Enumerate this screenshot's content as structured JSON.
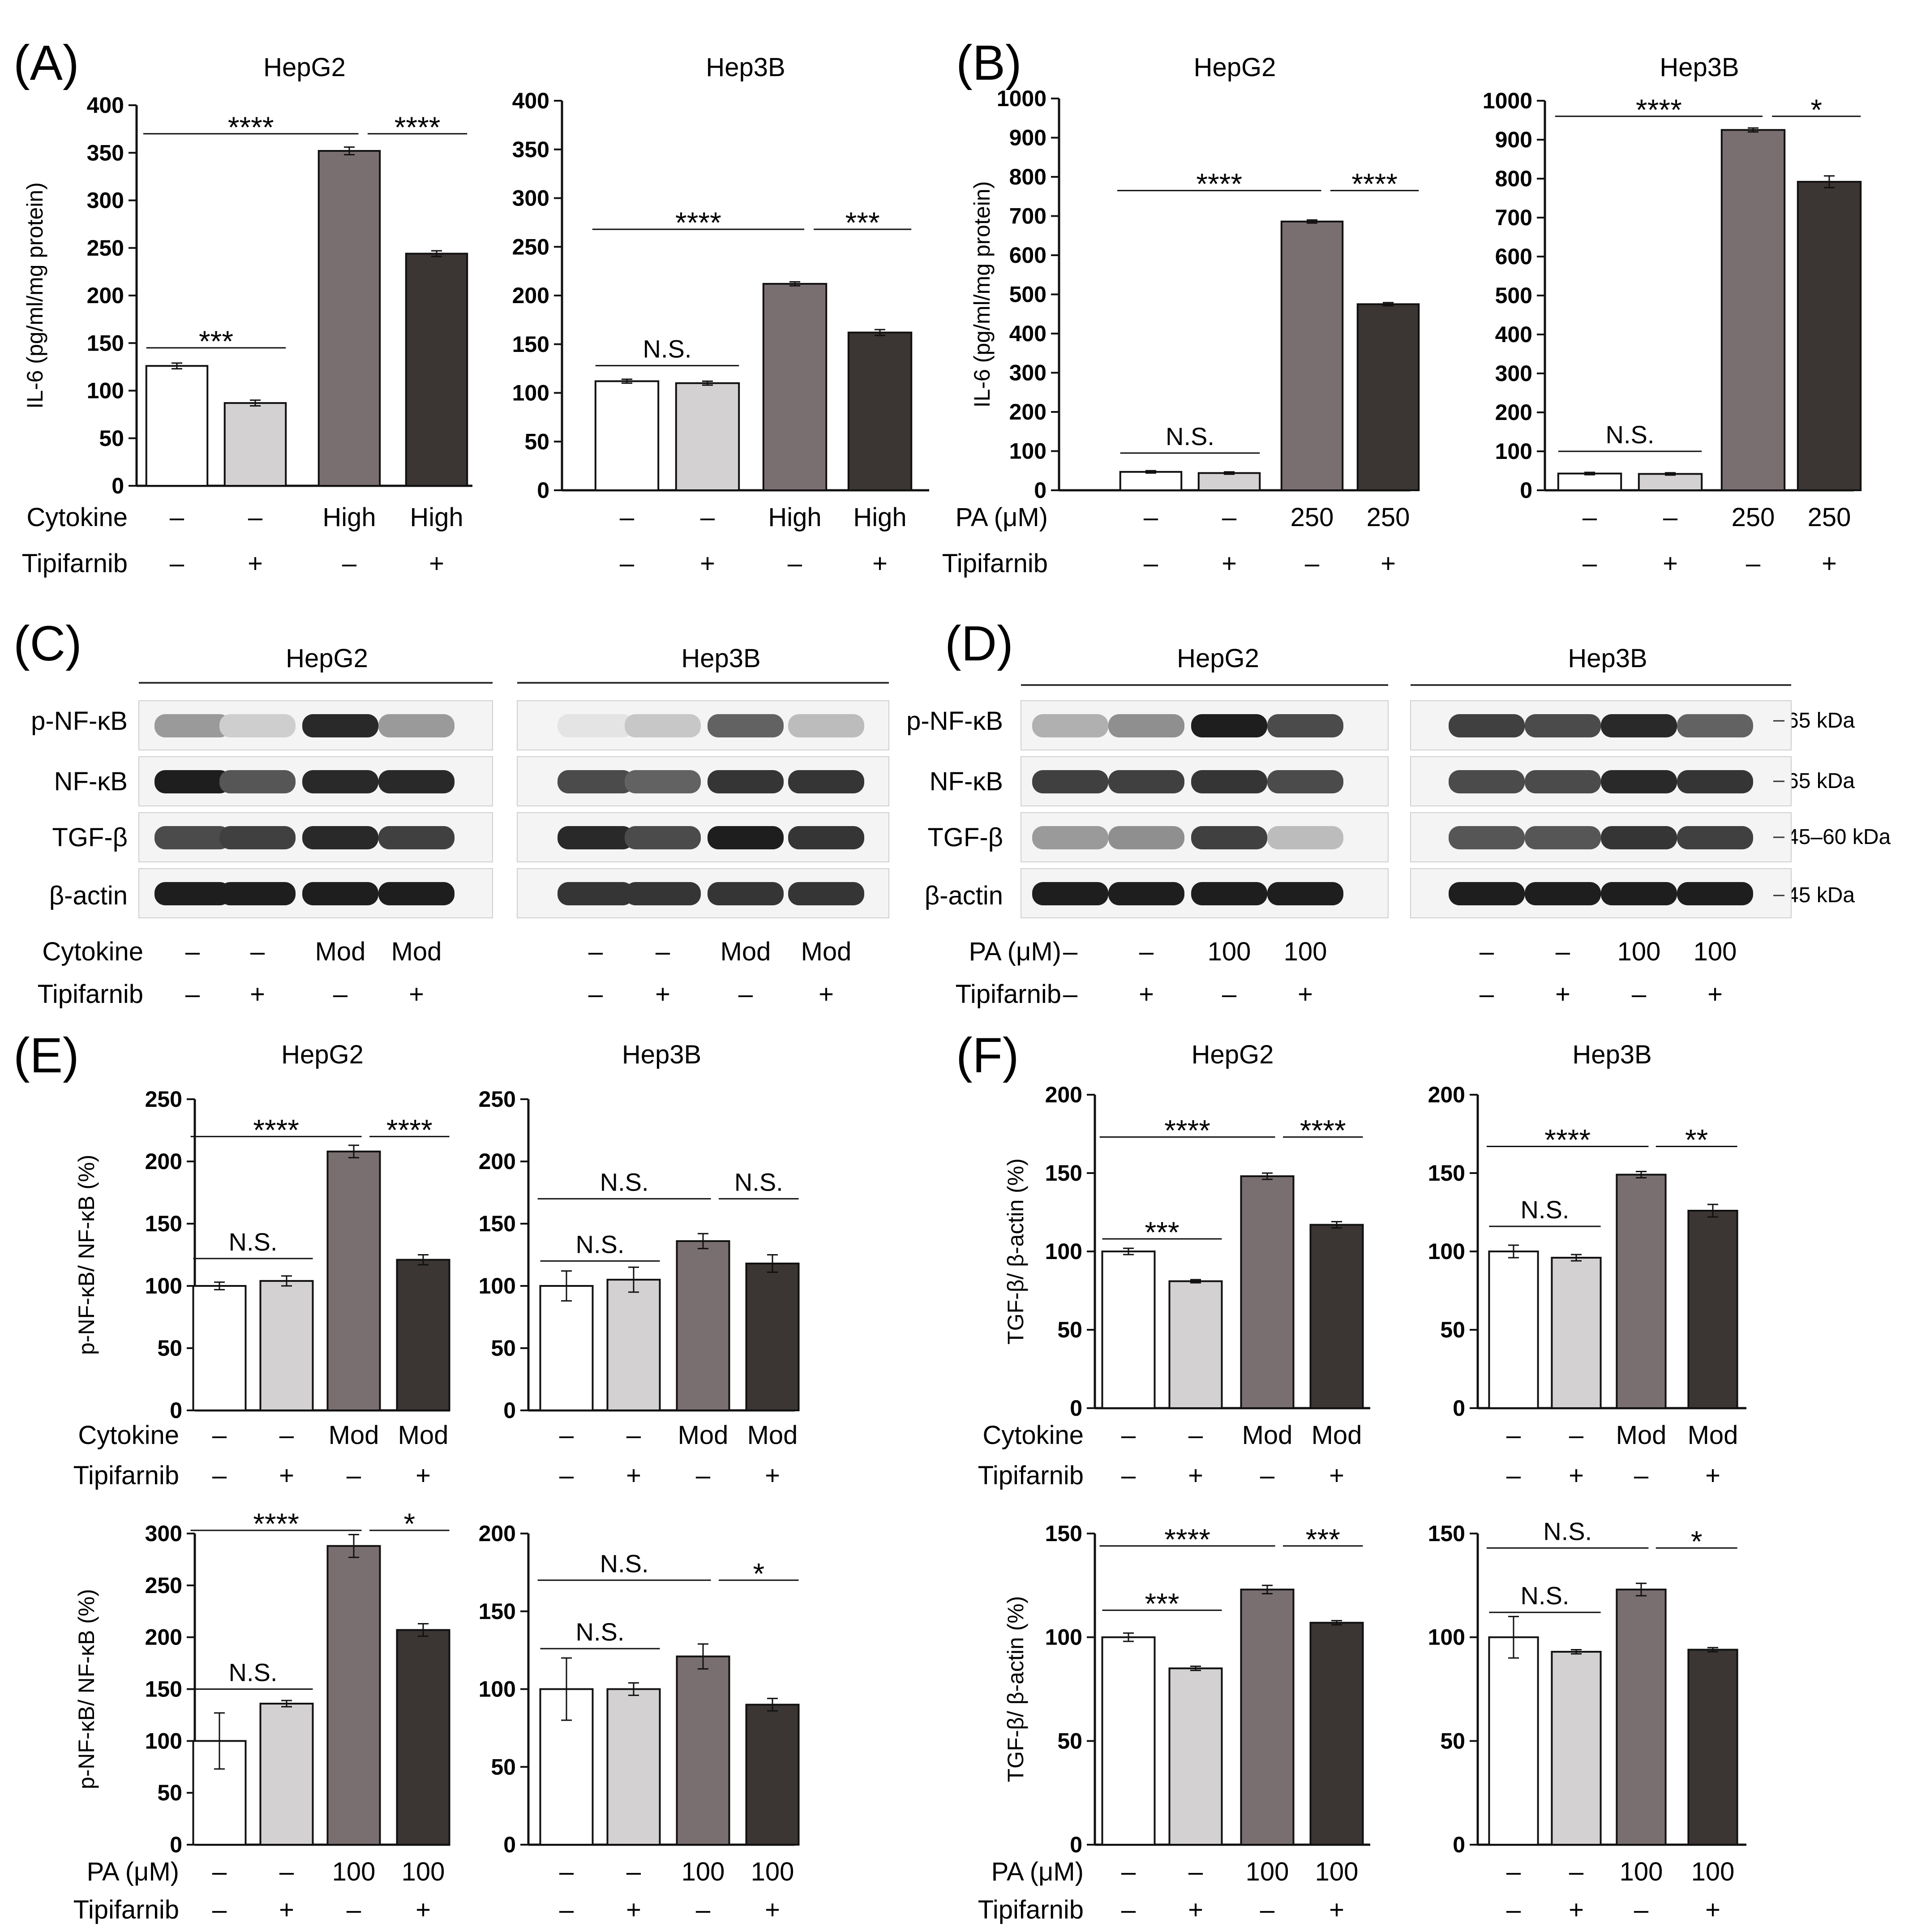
{
  "colors": {
    "white": "#ffffff",
    "light": "#d3d1d2",
    "medium": "#7a6f70",
    "dark": "#3b3533",
    "axis": "#111111"
  },
  "labels": {
    "cytokine": "Cytokine",
    "tipifarnib": "Tipifarnib",
    "pa": "PA (μM)",
    "dash": "–",
    "plus": "+",
    "high": "High",
    "mod": "Mod",
    "pa250": "250",
    "pa100": "100"
  },
  "panels": {
    "A": "(A)",
    "B": "(B)",
    "C": "(C)",
    "D": "(D)",
    "E": "(E)",
    "F": "(F)"
  },
  "blots": {
    "C": {
      "hepg2": "HepG2",
      "hep3b": "Hep3B",
      "rows": [
        "p-NF-κB",
        "NF-κB",
        "TGF-β",
        "β-actin"
      ]
    },
    "D": {
      "hepg2": "HepG2",
      "hep3b": "Hep3B",
      "rows": [
        "p-NF-κB",
        "NF-κB",
        "TGF-β",
        "β-actin"
      ]
    },
    "kda": [
      "65 kDa",
      "65 kDa",
      "45–60 kDa",
      "45 kDa"
    ]
  },
  "chart_data": [
    {
      "id": "A_hepg2",
      "type": "bar",
      "title": "HepG2",
      "ylabel": "IL-6 (pg/ml/mg protein)",
      "ylim": [
        0,
        400
      ],
      "yticks": [
        0,
        50,
        100,
        150,
        200,
        250,
        300,
        350,
        400
      ],
      "categories": [
        "–/–",
        "–/+",
        "High/–",
        "High/+"
      ],
      "values": [
        126,
        87,
        352,
        244
      ],
      "errors": [
        3,
        3,
        4,
        3
      ],
      "row1_label": "Cytokine",
      "row1": [
        "–",
        "–",
        "High",
        "High"
      ],
      "row2_label": "Tipifarnib",
      "row2": [
        "–",
        "+",
        "–",
        "+"
      ],
      "annotations": [
        {
          "from": 0,
          "to": 1,
          "text": "***",
          "y": 145
        },
        {
          "from": 0,
          "to": 2,
          "text": "****",
          "y": 370
        },
        {
          "from": 2,
          "to": 3,
          "text": "****",
          "y": 370
        }
      ]
    },
    {
      "id": "A_hep3b",
      "type": "bar",
      "title": "Hep3B",
      "ylabel": "",
      "ylim": [
        0,
        400
      ],
      "yticks": [
        0,
        50,
        100,
        150,
        200,
        250,
        300,
        350,
        400
      ],
      "categories": [
        "–/–",
        "–/+",
        "High/–",
        "High/+"
      ],
      "values": [
        112,
        110,
        212,
        162
      ],
      "errors": [
        2,
        2,
        2,
        3
      ],
      "row1_label": "",
      "row1": [
        "–",
        "–",
        "High",
        "High"
      ],
      "row2_label": "",
      "row2": [
        "–",
        "+",
        "–",
        "+"
      ],
      "annotations": [
        {
          "from": 0,
          "to": 1,
          "text": "N.S.",
          "y": 128
        },
        {
          "from": 0,
          "to": 2,
          "text": "****",
          "y": 268
        },
        {
          "from": 2,
          "to": 3,
          "text": "***",
          "y": 268
        }
      ]
    },
    {
      "id": "B_hepg2",
      "type": "bar",
      "title": "HepG2",
      "ylabel": "IL-6 (pg/ml/mg protein)",
      "ylim": [
        0,
        1000
      ],
      "yticks": [
        0,
        100,
        200,
        300,
        400,
        500,
        600,
        700,
        800,
        900,
        1000
      ],
      "categories": [
        "–/–",
        "–/+",
        "250/–",
        "250/+"
      ],
      "values": [
        47,
        44,
        686,
        475
      ],
      "errors": [
        3,
        3,
        4,
        4
      ],
      "row1_label": "PA (μM)",
      "row1": [
        "–",
        "–",
        "250",
        "250"
      ],
      "row2_label": "Tipifarnib",
      "row2": [
        "–",
        "+",
        "–",
        "+"
      ],
      "annotations": [
        {
          "from": 0,
          "to": 1,
          "text": "N.S.",
          "y": 95
        },
        {
          "from": 0,
          "to": 2,
          "text": "****",
          "y": 765
        },
        {
          "from": 2,
          "to": 3,
          "text": "****",
          "y": 765
        }
      ]
    },
    {
      "id": "B_hep3b",
      "type": "bar",
      "title": "Hep3B",
      "ylabel": "",
      "ylim": [
        0,
        1000
      ],
      "yticks": [
        0,
        100,
        200,
        300,
        400,
        500,
        600,
        700,
        800,
        900,
        1000
      ],
      "categories": [
        "–/–",
        "–/+",
        "250/–",
        "250/+"
      ],
      "values": [
        43,
        42,
        925,
        792
      ],
      "errors": [
        3,
        3,
        5,
        15
      ],
      "row1_label": "",
      "row1": [
        "–",
        "–",
        "250",
        "250"
      ],
      "row2_label": "",
      "row2": [
        "–",
        "+",
        "–",
        "+"
      ],
      "annotations": [
        {
          "from": 0,
          "to": 1,
          "text": "N.S.",
          "y": 100
        },
        {
          "from": 0,
          "to": 2,
          "text": "****",
          "y": 960
        },
        {
          "from": 2,
          "to": 3,
          "text": "*",
          "y": 960
        }
      ]
    },
    {
      "id": "E_hepg2_top",
      "type": "bar",
      "title": "HepG2",
      "ylabel": "p-NF-κB/ NF-κB (%)",
      "ylim": [
        0,
        250
      ],
      "yticks": [
        0,
        50,
        100,
        150,
        200,
        250
      ],
      "categories": [
        "–/–",
        "–/+",
        "Mod/–",
        "Mod/+"
      ],
      "values": [
        100,
        104,
        208,
        121
      ],
      "errors": [
        3,
        4,
        5,
        4
      ],
      "row1_label": "Cytokine",
      "row1": [
        "–",
        "–",
        "Mod",
        "Mod"
      ],
      "row2_label": "Tipifarnib",
      "row2": [
        "–",
        "+",
        "–",
        "+"
      ],
      "annotations": [
        {
          "from": 0,
          "to": 1,
          "text": "N.S.",
          "y": 122
        },
        {
          "from": 0,
          "to": 2,
          "text": "****",
          "y": 220
        },
        {
          "from": 2,
          "to": 3,
          "text": "****",
          "y": 220
        }
      ]
    },
    {
      "id": "E_hep3b_top",
      "type": "bar",
      "title": "Hep3B",
      "ylabel": "",
      "ylim": [
        0,
        250
      ],
      "yticks": [
        0,
        50,
        100,
        150,
        200,
        250
      ],
      "categories": [
        "–/–",
        "–/+",
        "Mod/–",
        "Mod/+"
      ],
      "values": [
        100,
        105,
        136,
        118
      ],
      "errors": [
        12,
        10,
        6,
        7
      ],
      "row1_label": "",
      "row1": [
        "–",
        "–",
        "Mod",
        "Mod"
      ],
      "row2_label": "",
      "row2": [
        "–",
        "+",
        "–",
        "+"
      ],
      "annotations": [
        {
          "from": 0,
          "to": 1,
          "text": "N.S.",
          "y": 120
        },
        {
          "from": 0,
          "to": 2,
          "text": "N.S.",
          "y": 170
        },
        {
          "from": 2,
          "to": 3,
          "text": "N.S.",
          "y": 170
        }
      ]
    },
    {
      "id": "E_hepg2_bottom",
      "type": "bar",
      "title": "",
      "ylabel": "p-NF-κB/ NF-κB (%)",
      "ylim": [
        0,
        300
      ],
      "yticks": [
        0,
        50,
        100,
        150,
        200,
        250,
        300
      ],
      "categories": [
        "–/–",
        "–/+",
        "100/–",
        "100/+"
      ],
      "values": [
        100,
        136,
        288,
        207
      ],
      "errors": [
        27,
        3,
        11,
        6
      ],
      "row1_label": "PA (μM)",
      "row1": [
        "–",
        "–",
        "100",
        "100"
      ],
      "row2_label": "Tipifarnib",
      "row2": [
        "–",
        "+",
        "–",
        "+"
      ],
      "annotations": [
        {
          "from": 0,
          "to": 1,
          "text": "N.S.",
          "y": 150
        },
        {
          "from": 0,
          "to": 2,
          "text": "****",
          "y": 303
        },
        {
          "from": 2,
          "to": 3,
          "text": "*",
          "y": 303
        }
      ]
    },
    {
      "id": "E_hep3b_bottom",
      "type": "bar",
      "title": "",
      "ylabel": "",
      "ylim": [
        0,
        200
      ],
      "yticks": [
        0,
        50,
        100,
        150,
        200
      ],
      "categories": [
        "–/–",
        "–/+",
        "100/–",
        "100/+"
      ],
      "values": [
        100,
        100,
        121,
        90
      ],
      "errors": [
        20,
        4,
        8,
        4
      ],
      "row1_label": "",
      "row1": [
        "–",
        "–",
        "100",
        "100"
      ],
      "row2_label": "",
      "row2": [
        "–",
        "+",
        "–",
        "+"
      ],
      "annotations": [
        {
          "from": 0,
          "to": 1,
          "text": "N.S.",
          "y": 126
        },
        {
          "from": 0,
          "to": 2,
          "text": "N.S.",
          "y": 170
        },
        {
          "from": 2,
          "to": 3,
          "text": "*",
          "y": 170
        }
      ]
    },
    {
      "id": "F_hepg2_top",
      "type": "bar",
      "title": "HepG2",
      "ylabel": "TGF-β/ β-actin (%)",
      "ylim": [
        0,
        200
      ],
      "yticks": [
        0,
        50,
        100,
        150,
        200
      ],
      "categories": [
        "–/–",
        "–/+",
        "Mod/–",
        "Mod/+"
      ],
      "values": [
        100,
        81,
        148,
        117
      ],
      "errors": [
        2,
        1,
        2,
        2
      ],
      "row1_label": "Cytokine",
      "row1": [
        "–",
        "–",
        "Mod",
        "Mod"
      ],
      "row2_label": "Tipifarnib",
      "row2": [
        "–",
        "+",
        "–",
        "+"
      ],
      "annotations": [
        {
          "from": 0,
          "to": 1,
          "text": "***",
          "y": 108
        },
        {
          "from": 0,
          "to": 2,
          "text": "****",
          "y": 173
        },
        {
          "from": 2,
          "to": 3,
          "text": "****",
          "y": 173
        }
      ]
    },
    {
      "id": "F_hep3b_top",
      "type": "bar",
      "title": "Hep3B",
      "ylabel": "",
      "ylim": [
        0,
        200
      ],
      "yticks": [
        0,
        50,
        100,
        150,
        200
      ],
      "categories": [
        "–/–",
        "–/+",
        "Mod/–",
        "Mod/+"
      ],
      "values": [
        100,
        96,
        149,
        126
      ],
      "errors": [
        4,
        2,
        2,
        4
      ],
      "row1_label": "",
      "row1": [
        "–",
        "–",
        "Mod",
        "Mod"
      ],
      "row2_label": "",
      "row2": [
        "–",
        "+",
        "–",
        "+"
      ],
      "annotations": [
        {
          "from": 0,
          "to": 1,
          "text": "N.S.",
          "y": 116
        },
        {
          "from": 0,
          "to": 2,
          "text": "****",
          "y": 167
        },
        {
          "from": 2,
          "to": 3,
          "text": "**",
          "y": 167
        }
      ]
    },
    {
      "id": "F_hepg2_bottom",
      "type": "bar",
      "title": "",
      "ylabel": "TGF-β/ β-actin (%)",
      "ylim": [
        0,
        150
      ],
      "yticks": [
        0,
        50,
        100,
        150
      ],
      "categories": [
        "–/–",
        "–/+",
        "100/–",
        "100/+"
      ],
      "values": [
        100,
        85,
        123,
        107
      ],
      "errors": [
        2,
        1,
        2,
        1
      ],
      "row1_label": "PA (μM)",
      "row1": [
        "–",
        "–",
        "100",
        "100"
      ],
      "row2_label": "Tipifarnib",
      "row2": [
        "–",
        "+",
        "–",
        "+"
      ],
      "annotations": [
        {
          "from": 0,
          "to": 1,
          "text": "***",
          "y": 113
        },
        {
          "from": 0,
          "to": 2,
          "text": "****",
          "y": 144
        },
        {
          "from": 2,
          "to": 3,
          "text": "***",
          "y": 144
        }
      ]
    },
    {
      "id": "F_hep3b_bottom",
      "type": "bar",
      "title": "",
      "ylabel": "",
      "ylim": [
        0,
        150
      ],
      "yticks": [
        0,
        50,
        100,
        150
      ],
      "categories": [
        "–/–",
        "–/+",
        "100/–",
        "100/+"
      ],
      "values": [
        100,
        93,
        123,
        94
      ],
      "errors": [
        10,
        1,
        3,
        1
      ],
      "row1_label": "",
      "row1": [
        "–",
        "–",
        "100",
        "100"
      ],
      "row2_label": "",
      "row2": [
        "–",
        "+",
        "–",
        "+"
      ],
      "annotations": [
        {
          "from": 0,
          "to": 1,
          "text": "N.S.",
          "y": 112
        },
        {
          "from": 0,
          "to": 2,
          "text": "N.S.",
          "y": 143
        },
        {
          "from": 2,
          "to": 3,
          "text": "*",
          "y": 143
        }
      ]
    }
  ]
}
